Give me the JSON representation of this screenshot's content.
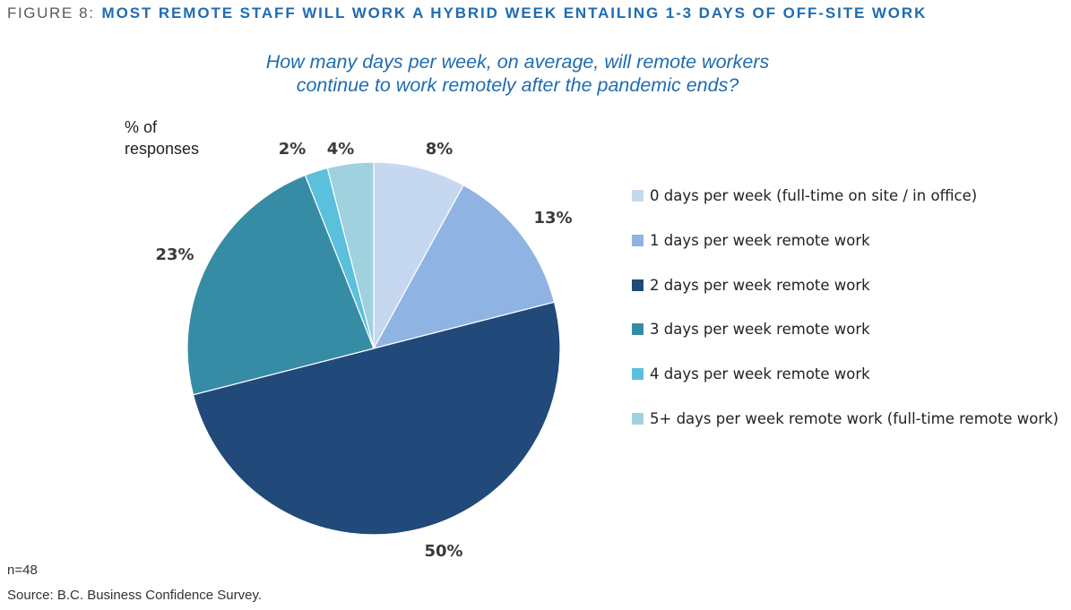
{
  "header": {
    "figure_label": "FIGURE 8:",
    "figure_title": "MOST REMOTE STAFF WILL WORK A HYBRID WEEK ENTAILING 1-3 DAYS OF OFF-SITE WORK"
  },
  "chart_data": {
    "type": "pie",
    "title_line1": "How many days per week, on average, will remote workers",
    "title_line2": "continue to work remotely after the pandemic ends?",
    "ylabel_line1": "% of",
    "ylabel_line2": "responses",
    "start_angle_deg": 0,
    "direction": "clockwise",
    "legend_position": "right",
    "slices": [
      {
        "label": "0 days per week (full-time on site / in office)",
        "value": 8,
        "display": "8%",
        "color": "#c5d8f0"
      },
      {
        "label": "1 days per week remote work",
        "value": 13,
        "display": "13%",
        "color": "#8fb3e3"
      },
      {
        "label": "2 days per week remote work",
        "value": 50,
        "display": "50%",
        "color": "#21497a"
      },
      {
        "label": "3 days per week remote work",
        "value": 23,
        "display": "23%",
        "color": "#378ca5"
      },
      {
        "label": "4 days per week remote work",
        "value": 2,
        "display": "2%",
        "color": "#5bc0dc"
      },
      {
        "label": "5+ days per week remote work (full-time remote work)",
        "value": 4,
        "display": "4%",
        "color": "#9fd1df"
      }
    ]
  },
  "footer": {
    "sample_size": "n=48",
    "source": "Source:  B.C. Business Confidence Survey."
  }
}
